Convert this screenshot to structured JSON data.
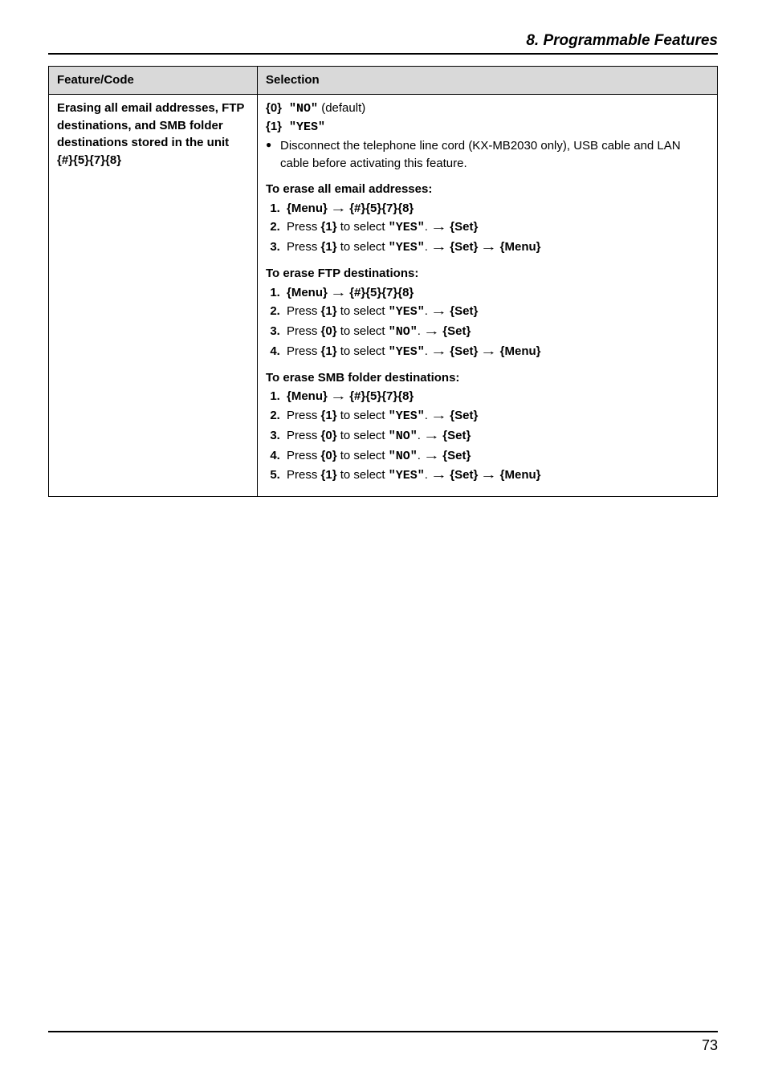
{
  "page": {
    "section_title": "8. Programmable Features",
    "page_number": "73"
  },
  "table": {
    "header_left": "Feature/Code",
    "header_right": "Selection",
    "left": {
      "line1": "Erasing all email addresses, FTP destinations, and SMB folder destinations stored in the unit",
      "code_sharp": "{",
      "code_buttons": "#}{5}{7}{8}"
    },
    "right": {
      "opt0_key": "{0}",
      "opt0_val": " \"NO\"",
      "opt0_suffix": " (default)",
      "opt1_key": "{1}",
      "opt1_val": " \"YES\"",
      "bullet": "Disconnect the telephone line cord (KX-MB2030 only), USB cable and LAN cable before activating this feature.",
      "sec1_title": "To erase all email addresses:",
      "sec2_title": "To erase FTP destinations:",
      "sec3_title": "To erase SMB folder destinations:",
      "menu": "{Menu}",
      "code": "{#}{5}{7}{8}",
      "press": "Press ",
      "k1": "{1}",
      "k0": "{0}",
      "sel_yes": " to select ",
      "yes": "\"YES\"",
      "no": "\"NO\"",
      "dot": ". ",
      "set": "{Set}",
      "menu2": "{Menu}"
    }
  }
}
